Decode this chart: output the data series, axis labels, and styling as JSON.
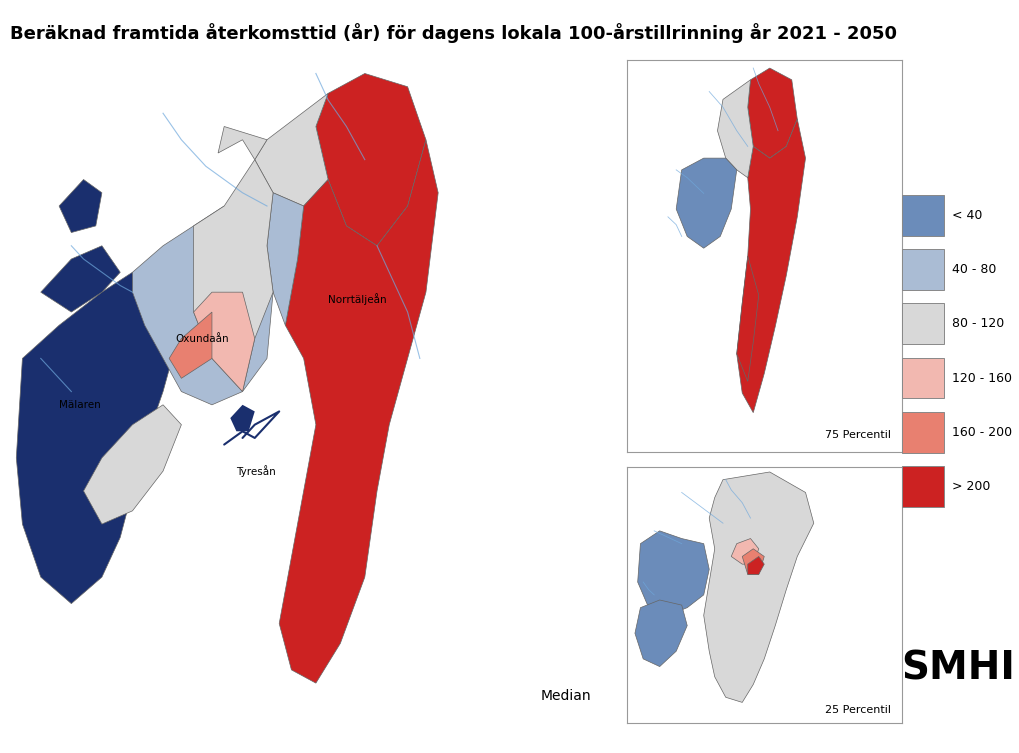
{
  "title": "Beräknad framtida återkomsttid (år) för dagens lokala 100-årstillrinning år 2021 - 2050",
  "title_fontsize": 13,
  "background_color": "#ffffff",
  "legend_colors": [
    "#6b8cba",
    "#aabcd4",
    "#d8d8d8",
    "#f2b8b0",
    "#e88070",
    "#cc2222"
  ],
  "legend_labels": [
    "< 40",
    "40 - 80",
    "80 - 120",
    "120 - 160",
    "160 - 200",
    "> 200"
  ],
  "label_median": "Median",
  "label_75p": "75 Percentil",
  "label_25p": "25 Percentil",
  "smhi_text": "SMHI",
  "river_color": "#6fa8dc",
  "border_color": "#666666",
  "dark_blue": "#1a2f6e",
  "map_labels": [
    "Norrtäljeån",
    "Oxundaån",
    "Tyresån",
    "Mälaren"
  ]
}
